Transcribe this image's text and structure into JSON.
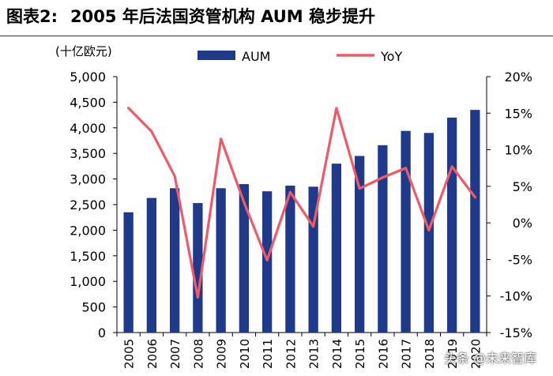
{
  "title": {
    "number": "图表2:",
    "text": "2005 年后法国资管机构 AUM 稳步提升"
  },
  "watermark": "头条 @未来智库",
  "chart_data": {
    "type": "bar",
    "categories": [
      "2005",
      "2006",
      "2007",
      "2008",
      "2009",
      "2010",
      "2011",
      "2012",
      "2013",
      "2014",
      "2015",
      "2016",
      "2017",
      "2018",
      "2019",
      "2020"
    ],
    "ylabel_left": "(十亿欧元)",
    "ylim_left": [
      0,
      5000
    ],
    "yticks_left": [
      "0",
      "500",
      "1,000",
      "1,500",
      "2,000",
      "2,500",
      "3,000",
      "3,500",
      "4,000",
      "4,500",
      "5,000"
    ],
    "ylim_right": [
      -15,
      20
    ],
    "yticks_right": [
      "-15%",
      "-10%",
      "-5%",
      "0%",
      "5%",
      "10%",
      "15%",
      "20%"
    ],
    "legend_position": "top",
    "series": [
      {
        "name": "AUM",
        "type": "bar",
        "color": "#1f3a8a",
        "values": [
          2350,
          2630,
          2820,
          2530,
          2820,
          2900,
          2760,
          2870,
          2850,
          3300,
          3450,
          3660,
          3940,
          3900,
          4200,
          4350
        ]
      },
      {
        "name": "YoY",
        "type": "line",
        "color": "#f05a67",
        "unit": "%",
        "values": [
          15.7,
          12.5,
          6.4,
          -10.2,
          11.5,
          2.8,
          -5.1,
          4.2,
          -0.5,
          15.7,
          4.7,
          6.2,
          7.5,
          -1.0,
          7.7,
          3.5
        ]
      }
    ]
  }
}
